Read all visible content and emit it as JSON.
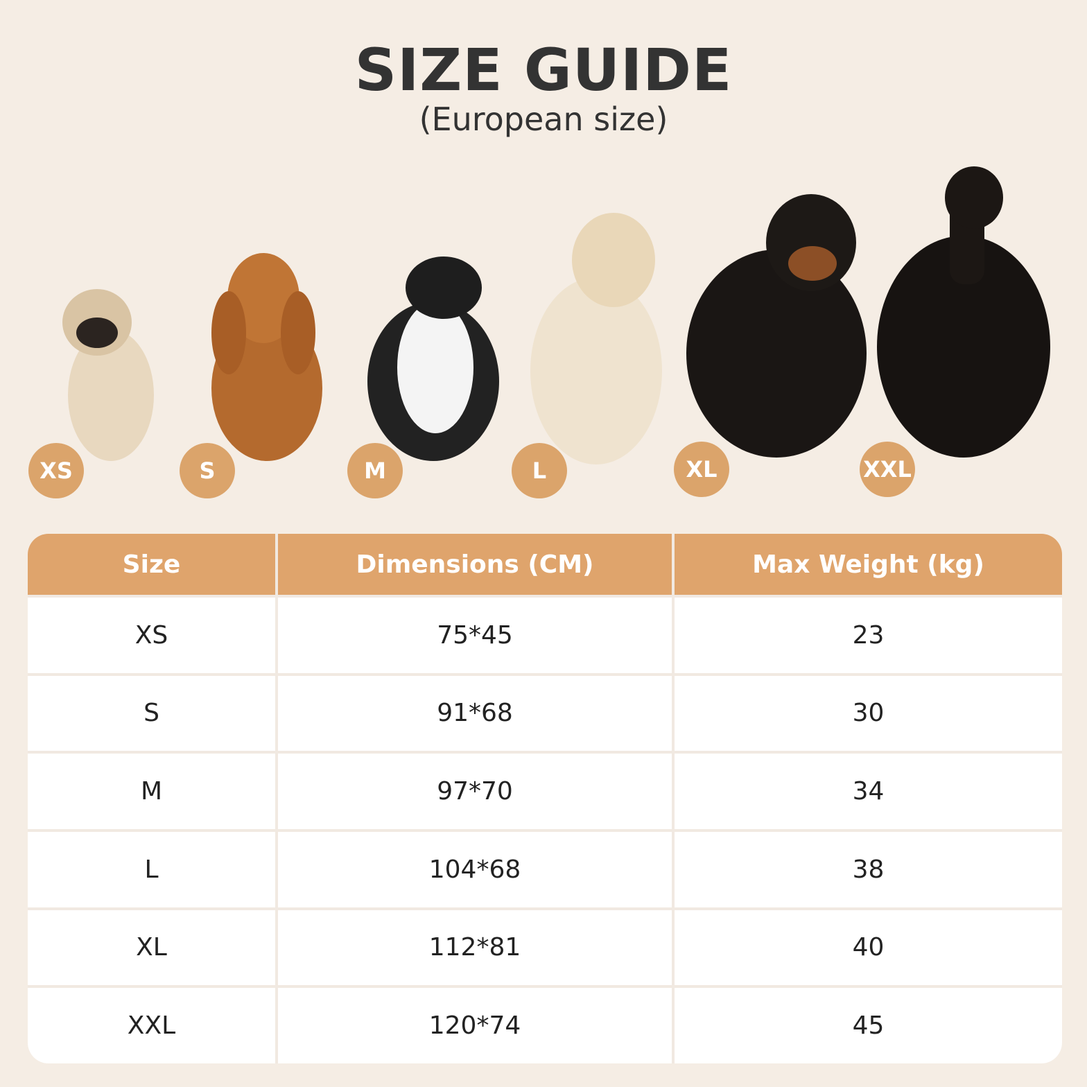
{
  "header": {
    "title": "SIZE GUIDE",
    "subtitle": "(European size)"
  },
  "badges": [
    "XS",
    "S",
    "M",
    "L",
    "XL",
    "XXL"
  ],
  "table": {
    "headers": [
      "Size",
      "Dimensions (CM)",
      "Max Weight (kg)"
    ],
    "rows": [
      [
        "XS",
        "75*45",
        23
      ],
      [
        "S",
        "91*68",
        30
      ],
      [
        "M",
        "97*70",
        34
      ],
      [
        "L",
        "104*68",
        38
      ],
      [
        "XL",
        "112*81",
        40
      ],
      [
        "XXL",
        "120*74",
        45
      ]
    ]
  }
}
